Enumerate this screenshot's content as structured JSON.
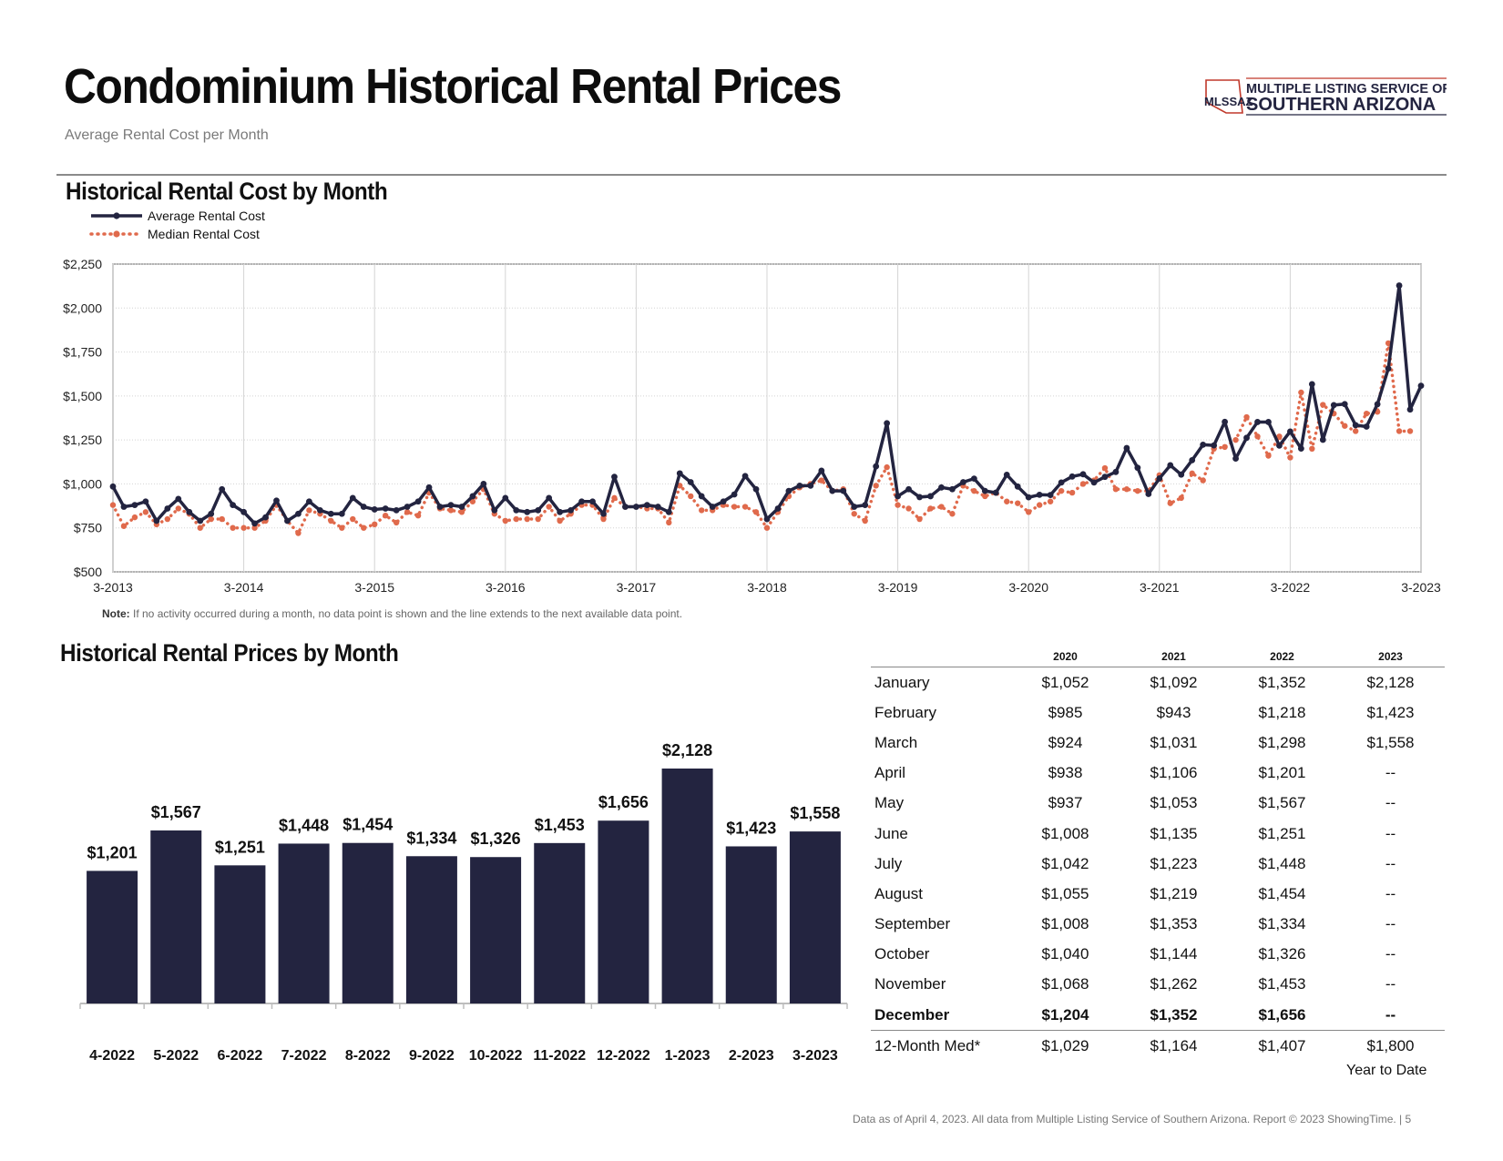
{
  "header": {
    "title": "Condominium Historical Rental Prices",
    "subtitle": "Average Rental Cost per Month",
    "logo_line1": "MULTIPLE LISTING SERVICE OF",
    "logo_line2": "SOUTHERN ARIZONA",
    "logo_abbr": "MLSSAZ"
  },
  "colors": {
    "navy": "#232440",
    "orange": "#e06a4c",
    "grid": "#d4d4d4"
  },
  "line_section": {
    "title": "Historical Rental Cost by Month",
    "legend": [
      "Average Rental Cost",
      "Median Rental Cost"
    ],
    "note_bold": "Note:",
    "note_text": " If no activity occurred during a month, no data point is shown and the line extends to the next available data point."
  },
  "bar_section": {
    "title": "Historical Rental Prices by Month"
  },
  "chart_data": [
    {
      "type": "line",
      "title": "Historical Rental Cost by Month",
      "ylim": [
        500,
        2250
      ],
      "yticks": [
        "$500",
        "$750",
        "$1,000",
        "$1,250",
        "$1,500",
        "$1,750",
        "$2,000",
        "$2,250"
      ],
      "ytick_values": [
        500,
        750,
        1000,
        1250,
        1500,
        1750,
        2000,
        2250
      ],
      "xticks": [
        "3-2013",
        "3-2014",
        "3-2015",
        "3-2016",
        "3-2017",
        "3-2018",
        "3-2019",
        "3-2020",
        "3-2021",
        "3-2022",
        "3-2023"
      ],
      "x_start": "3-2013",
      "x_end": "3-2023",
      "grid": true,
      "legend_position": "top-left",
      "series": [
        {
          "name": "Average Rental Cost",
          "style": "solid",
          "values": [
            985,
            870,
            880,
            900,
            790,
            860,
            915,
            840,
            790,
            830,
            970,
            880,
            840,
            775,
            810,
            905,
            790,
            830,
            900,
            850,
            830,
            830,
            920,
            870,
            855,
            860,
            850,
            870,
            900,
            980,
            870,
            880,
            870,
            930,
            1000,
            850,
            920,
            850,
            840,
            850,
            920,
            840,
            850,
            900,
            900,
            830,
            1040,
            870,
            870,
            880,
            870,
            840,
            1060,
            1010,
            930,
            870,
            900,
            940,
            1045,
            970,
            800,
            860,
            960,
            990,
            990,
            1075,
            960,
            960,
            870,
            880,
            1100,
            1345,
            930,
            970,
            925,
            930,
            980,
            970,
            1010,
            1030,
            960,
            950,
            1052,
            985,
            924,
            938,
            937,
            1008,
            1042,
            1055,
            1008,
            1040,
            1068,
            1204,
            1092,
            943,
            1031,
            1106,
            1053,
            1135,
            1223,
            1219,
            1353,
            1144,
            1262,
            1352,
            1352,
            1218,
            1298,
            1201,
            1567,
            1251,
            1448,
            1454,
            1334,
            1326,
            1453,
            1656,
            2128,
            1423,
            1558
          ]
        },
        {
          "name": "Median Rental Cost",
          "style": "dotted",
          "values": [
            880,
            760,
            810,
            840,
            770,
            800,
            860,
            830,
            750,
            800,
            800,
            750,
            750,
            750,
            790,
            880,
            790,
            720,
            850,
            830,
            790,
            750,
            800,
            750,
            770,
            820,
            780,
            840,
            820,
            950,
            860,
            850,
            840,
            900,
            970,
            830,
            790,
            800,
            800,
            800,
            870,
            790,
            830,
            880,
            880,
            800,
            920,
            870,
            870,
            860,
            860,
            780,
            990,
            930,
            850,
            850,
            880,
            870,
            870,
            840,
            750,
            840,
            930,
            980,
            1000,
            1020,
            960,
            970,
            830,
            790,
            990,
            1095,
            880,
            860,
            800,
            860,
            870,
            830,
            990,
            960,
            930,
            950,
            900,
            890,
            840,
            880,
            900,
            960,
            950,
            1000,
            1020,
            1090,
            970,
            970,
            960,
            960,
            1050,
            890,
            920,
            1060,
            1020,
            1200,
            1210,
            1250,
            1380,
            1270,
            1160,
            1270,
            1150,
            1520,
            1200,
            1450,
            1400,
            1330,
            1300,
            1400,
            1410,
            1800,
            1300,
            1300
          ]
        }
      ]
    },
    {
      "type": "bar",
      "title": "Historical Rental Prices by Month",
      "categories": [
        "4-2022",
        "5-2022",
        "6-2022",
        "7-2022",
        "8-2022",
        "9-2022",
        "10-2022",
        "11-2022",
        "12-2022",
        "1-2023",
        "2-2023",
        "3-2023"
      ],
      "values": [
        1201,
        1567,
        1251,
        1448,
        1454,
        1334,
        1326,
        1453,
        1656,
        2128,
        1423,
        1558
      ],
      "value_labels": [
        "$1,201",
        "$1,567",
        "$1,251",
        "$1,448",
        "$1,454",
        "$1,334",
        "$1,326",
        "$1,453",
        "$1,656",
        "$2,128",
        "$1,423",
        "$1,558"
      ],
      "ylim": [
        0,
        2128
      ]
    },
    {
      "type": "table",
      "columns": [
        "",
        "2020",
        "2021",
        "2022",
        "2023"
      ],
      "rows": [
        [
          "January",
          "$1,052",
          "$1,092",
          "$1,352",
          "$2,128"
        ],
        [
          "February",
          "$985",
          "$943",
          "$1,218",
          "$1,423"
        ],
        [
          "March",
          "$924",
          "$1,031",
          "$1,298",
          "$1,558"
        ],
        [
          "April",
          "$938",
          "$1,106",
          "$1,201",
          "--"
        ],
        [
          "May",
          "$937",
          "$1,053",
          "$1,567",
          "--"
        ],
        [
          "June",
          "$1,008",
          "$1,135",
          "$1,251",
          "--"
        ],
        [
          "July",
          "$1,042",
          "$1,223",
          "$1,448",
          "--"
        ],
        [
          "August",
          "$1,055",
          "$1,219",
          "$1,454",
          "--"
        ],
        [
          "September",
          "$1,008",
          "$1,353",
          "$1,334",
          "--"
        ],
        [
          "October",
          "$1,040",
          "$1,144",
          "$1,326",
          "--"
        ],
        [
          "November",
          "$1,068",
          "$1,262",
          "$1,453",
          "--"
        ],
        [
          "December",
          "$1,204",
          "$1,352",
          "$1,656",
          "--"
        ],
        [
          "12-Month Med*",
          "$1,029",
          "$1,164",
          "$1,407",
          "$1,800"
        ]
      ],
      "bold_row": "December",
      "ytd_label": "Year to Date"
    }
  ],
  "footer": "Data as of April 4, 2023. All data from Multiple Listing Service of Southern Arizona. Report © 2023 ShowingTime. |  5"
}
